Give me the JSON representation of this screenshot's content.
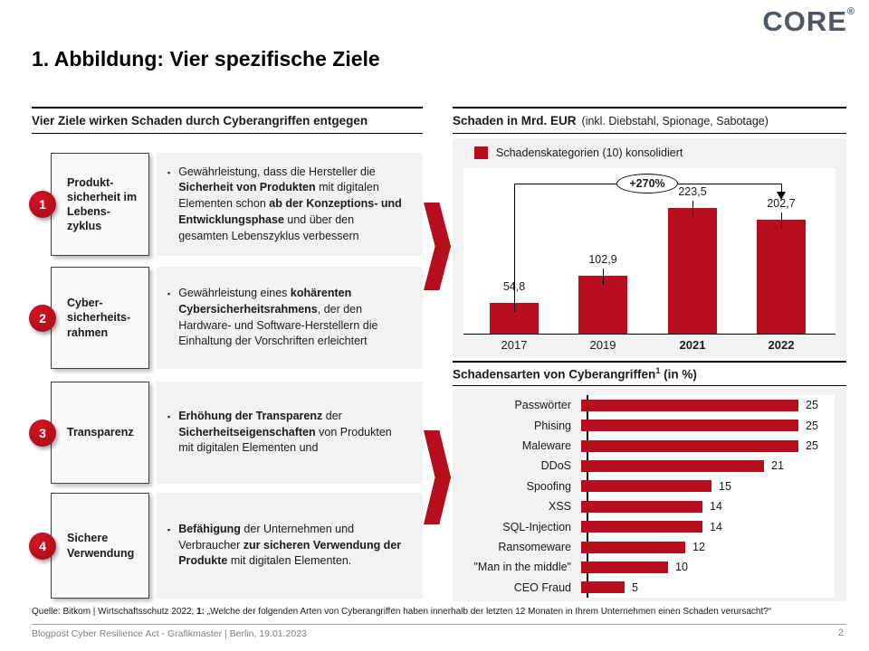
{
  "logo": {
    "text": "CORE",
    "registered": "®",
    "color": "#4d5864"
  },
  "title": "1. Abbildung: Vier spezifische Ziele",
  "colors": {
    "accent_red": "#b60d1f",
    "panel_gray": "#f2f2f2",
    "footer_gray": "#7f7f7f"
  },
  "left_panel": {
    "header": "Vier Ziele wirken Schaden durch Cyberangriffen entgegen",
    "items": [
      {
        "number": "1",
        "box_label": "Produkt-\nsicherheit im\nLebens-\nzyklus",
        "text_segments": [
          {
            "t": "Gewährleistung, dass die Hersteller die ",
            "b": 0
          },
          {
            "t": "Sicherheit von Produkten",
            "b": 1
          },
          {
            "t": " mit digitalen Elementen schon ",
            "b": 0
          },
          {
            "t": "ab der Konzeptions- und Entwicklungsphase",
            "b": 1
          },
          {
            "t": " und über den gesamten Lebenszyklus verbessern",
            "b": 0
          }
        ]
      },
      {
        "number": "2",
        "box_label": "Cyber-\nsicherheits-\nrahmen",
        "text_segments": [
          {
            "t": "Gewährleistung eines ",
            "b": 0
          },
          {
            "t": "kohärenten Cybersicherheitsrahmens",
            "b": 1
          },
          {
            "t": ", der den Hardware- und Software-Herstellern die Einhaltung der Vorschriften erleichtert",
            "b": 0
          }
        ]
      },
      {
        "number": "3",
        "box_label": "Transparenz",
        "text_segments": [
          {
            "t": "Erhöhung der Transparenz",
            "b": 1
          },
          {
            "t": " der ",
            "b": 0
          },
          {
            "t": "Sicherheitseigenschaften",
            "b": 1
          },
          {
            "t": " von Produkten mit digitalen Elementen und",
            "b": 0
          }
        ]
      },
      {
        "number": "4",
        "box_label": "Sichere\nVerwendung",
        "text_segments": [
          {
            "t": "Befähigung",
            "b": 1
          },
          {
            "t": " der Unternehmen und Verbraucher ",
            "b": 0
          },
          {
            "t": "zur sicheren Verwendung der Produkte",
            "b": 1
          },
          {
            "t": " mit digitalen Elementen.",
            "b": 0
          }
        ]
      }
    ]
  },
  "chart_data": [
    {
      "type": "bar",
      "title": "Schaden in Mrd. EUR",
      "subtitle": "(inkl. Diebstahl, Spionage, Sabotage)",
      "legend": "Schadenskategorien (10) konsolidiert",
      "legend_position": "top-left",
      "categories": [
        "2017",
        "2019",
        "2021",
        "2022"
      ],
      "values": [
        54.8,
        102.9,
        223.5,
        202.7
      ],
      "labels": [
        "54,8",
        "102,9",
        "223,5",
        "202,7"
      ],
      "bold_categories": [
        "2021",
        "2022"
      ],
      "annotation": "+270%",
      "xlabel": "",
      "ylabel": "",
      "ylim": [
        0,
        240
      ],
      "grid": false,
      "bar_color": "#b60d1f"
    },
    {
      "type": "bar-horizontal",
      "title": "Schadensarten von Cyberangriffen",
      "title_superscript": "1",
      "title_suffix": " (in %)",
      "categories": [
        "Passwörter",
        "Phising",
        "Maleware",
        "DDoS",
        "Spoofing",
        "XSS",
        "SQL-Injection",
        "Ransomeware",
        "\"Man in the middle\"",
        "CEO Fraud"
      ],
      "values": [
        25,
        25,
        25,
        21,
        15,
        14,
        14,
        12,
        10,
        5
      ],
      "xlim": [
        0,
        26
      ],
      "grid": false,
      "bar_color": "#b60d1f"
    }
  ],
  "footer": {
    "source_segments": [
      {
        "t": "Quelle: Bitkom | Wirtschaftsschutz 2022; ",
        "b": 0
      },
      {
        "t": "1:",
        "b": 1
      },
      {
        "t": " „Welche der folgenden Arten von Cyberangriffen haben innerhalb der letzten 12 Monaten in Ihrem Unternehmen einen Schaden verursacht?“",
        "b": 0
      }
    ],
    "left_text": "Blogpost Cyber Resilience Act - Grafikmaster | Berlin, 19.01.2023",
    "page_number": "2"
  }
}
